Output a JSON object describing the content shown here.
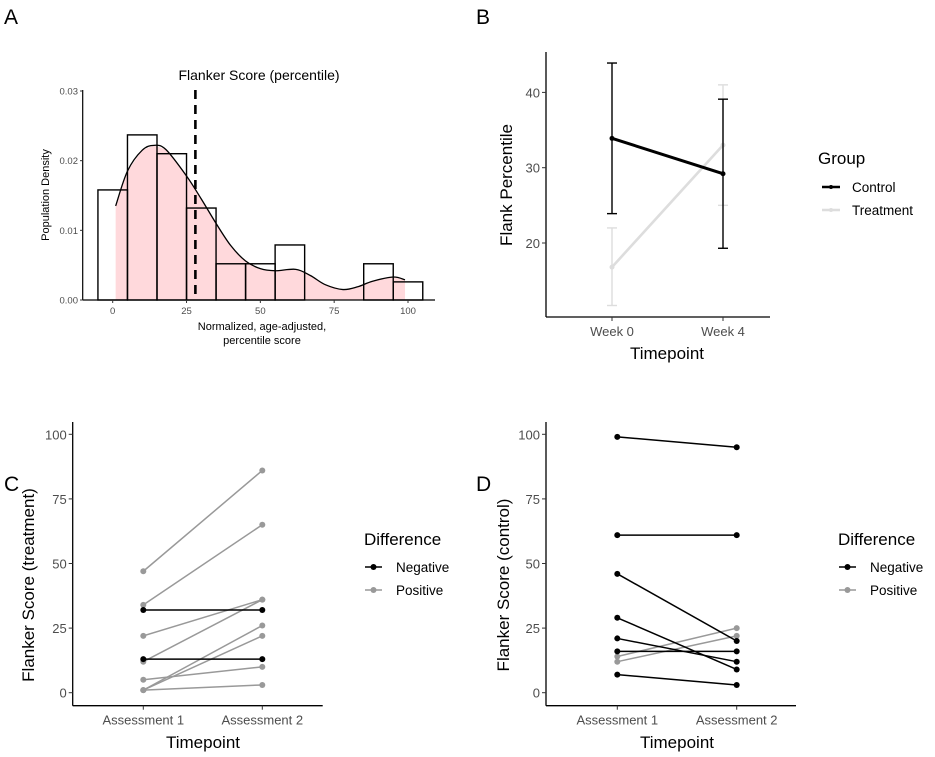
{
  "chart_data": [
    {
      "panel": "A",
      "type": "bar",
      "subtype": "histogram-with-density",
      "title": "Flanker Score (percentile)",
      "xlabel": [
        "Normalized, age-adjusted,",
        "percentile score"
      ],
      "ylabel": "Population Density",
      "xlim": [
        -8,
        108
      ],
      "ylim": [
        0,
        0.03
      ],
      "xticks": [
        "0",
        "25",
        "50",
        "75",
        "100"
      ],
      "xtick_values": [
        0,
        25,
        50,
        75,
        100
      ],
      "yticks": [
        "0.00",
        "0.01",
        "0.02",
        "0.03"
      ],
      "ytick_values": [
        0,
        0.01,
        0.02,
        0.03
      ],
      "bin_width": 10,
      "bin_centers": [
        0,
        10,
        20,
        30,
        40,
        50,
        60,
        70,
        80,
        90,
        100
      ],
      "values": [
        0.0158,
        0.0237,
        0.021,
        0.0132,
        0.0052,
        0.0052,
        0.0079,
        0,
        0,
        0.0052,
        0.0026
      ],
      "density": {
        "x": [
          1,
          5,
          10,
          14,
          18,
          25,
          30,
          35,
          40,
          45,
          50,
          55,
          62,
          67,
          72,
          78,
          83,
          88,
          95,
          99
        ],
        "y": [
          0.0135,
          0.0185,
          0.0215,
          0.0222,
          0.0216,
          0.0178,
          0.0145,
          0.011,
          0.0078,
          0.0056,
          0.0045,
          0.0042,
          0.0044,
          0.0035,
          0.0022,
          0.0015,
          0.0019,
          0.0027,
          0.0033,
          0.0029
        ],
        "fill": "#ffd9dc"
      },
      "vline": {
        "x": 28,
        "style": "dashed"
      }
    },
    {
      "panel": "B",
      "type": "line",
      "xlabel": "Timepoint",
      "ylabel": "Flank Percentile",
      "categories": [
        "Week 0",
        "Week 4"
      ],
      "ylim": [
        10.2,
        45.4
      ],
      "yticks": [
        "20",
        "30",
        "40"
      ],
      "ytick_values": [
        20,
        30,
        40
      ],
      "legend_title": "Group",
      "legend_position": "right",
      "series": [
        {
          "name": "Control",
          "color": "#000000",
          "values": [
            33.9,
            29.2
          ],
          "lower": [
            23.9,
            19.3
          ],
          "upper": [
            43.9,
            39.1
          ]
        },
        {
          "name": "Treatment",
          "color": "#dddddd",
          "values": [
            16.8,
            33.0
          ],
          "lower": [
            11.7,
            25.0
          ],
          "upper": [
            22.0,
            41.0
          ]
        }
      ]
    },
    {
      "panel": "C",
      "type": "line",
      "subtype": "paired",
      "xlabel": "Timepoint",
      "ylabel": "Flanker Score (treatment)",
      "categories": [
        "Assessment 1",
        "Assessment 2"
      ],
      "ylim": [
        -5,
        105
      ],
      "yticks": [
        "0",
        "25",
        "50",
        "75",
        "100"
      ],
      "ytick_values": [
        0,
        25,
        50,
        75,
        100
      ],
      "legend_title": "Difference",
      "legend_position": "right",
      "groups": [
        {
          "name": "Negative",
          "color": "#000000"
        },
        {
          "name": "Positive",
          "color": "#999999"
        }
      ],
      "pairs": [
        {
          "group": "Positive",
          "values": [
            47,
            86
          ]
        },
        {
          "group": "Positive",
          "values": [
            34,
            65
          ]
        },
        {
          "group": "Positive",
          "values": [
            22,
            36
          ]
        },
        {
          "group": "Positive",
          "values": [
            12,
            36
          ]
        },
        {
          "group": "Positive",
          "values": [
            1,
            26
          ]
        },
        {
          "group": "Positive",
          "values": [
            1,
            22
          ]
        },
        {
          "group": "Positive",
          "values": [
            5,
            10
          ]
        },
        {
          "group": "Positive",
          "values": [
            1,
            3
          ]
        },
        {
          "group": "Negative",
          "values": [
            32,
            32
          ]
        },
        {
          "group": "Negative",
          "values": [
            13,
            13
          ]
        }
      ]
    },
    {
      "panel": "D",
      "type": "line",
      "subtype": "paired",
      "xlabel": "Timepoint",
      "ylabel": "Flanker Score (control)",
      "categories": [
        "Assessment 1",
        "Assessment 2"
      ],
      "ylim": [
        -5,
        105
      ],
      "yticks": [
        "0",
        "25",
        "50",
        "75",
        "100"
      ],
      "ytick_values": [
        0,
        25,
        50,
        75,
        100
      ],
      "legend_title": "Difference",
      "legend_position": "right",
      "groups": [
        {
          "name": "Negative",
          "color": "#000000"
        },
        {
          "name": "Positive",
          "color": "#999999"
        }
      ],
      "pairs": [
        {
          "group": "Positive",
          "values": [
            14,
            25
          ]
        },
        {
          "group": "Positive",
          "values": [
            12,
            22
          ]
        },
        {
          "group": "Negative",
          "values": [
            99,
            95
          ]
        },
        {
          "group": "Negative",
          "values": [
            61,
            61
          ]
        },
        {
          "group": "Negative",
          "values": [
            46,
            20
          ]
        },
        {
          "group": "Negative",
          "values": [
            29,
            9
          ]
        },
        {
          "group": "Negative",
          "values": [
            21,
            12
          ]
        },
        {
          "group": "Negative",
          "values": [
            16,
            16
          ]
        },
        {
          "group": "Negative",
          "values": [
            7,
            3
          ]
        }
      ]
    }
  ],
  "panel_labels": [
    "A",
    "B",
    "C",
    "D"
  ]
}
